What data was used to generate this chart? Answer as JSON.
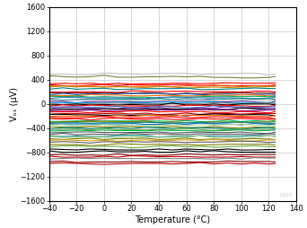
{
  "xlabel": "Temperature (°C)",
  "ylabel": "Vₒₛ (μV)",
  "xlim": [
    -40,
    140
  ],
  "ylim": [
    -1600,
    1600
  ],
  "xticks": [
    -40,
    -20,
    0,
    20,
    40,
    60,
    80,
    100,
    120,
    140
  ],
  "yticks": [
    -1600,
    -1200,
    -800,
    -400,
    0,
    400,
    800,
    1200,
    1600
  ],
  "x_start": -40,
  "x_end": 125,
  "seed": 12345,
  "watermark": "C035",
  "background_color": "#FFFFFF",
  "grid_color": "#C8C8C8",
  "line_specs": [
    {
      "color": "#C0C0C0",
      "v0": 490,
      "slope": 0.5
    },
    {
      "color": "#808040",
      "v0": 450,
      "slope": -0.3
    },
    {
      "color": "#FF0000",
      "v0": 340,
      "slope": 0.1
    },
    {
      "color": "#FF0000",
      "v0": 310,
      "slope": -0.05
    },
    {
      "color": "#FF6600",
      "v0": 290,
      "slope": 0.2
    },
    {
      "color": "#C08000",
      "v0": 280,
      "slope": -0.1
    },
    {
      "color": "#008080",
      "v0": 250,
      "slope": 0.3
    },
    {
      "color": "#FF0000",
      "v0": 200,
      "slope": 0.15
    },
    {
      "color": "#800000",
      "v0": 180,
      "slope": -0.2
    },
    {
      "color": "#0070C0",
      "v0": 160,
      "slope": 0.1
    },
    {
      "color": "#FF6600",
      "v0": 140,
      "slope": 0.05
    },
    {
      "color": "#00B050",
      "v0": 120,
      "slope": -0.1
    },
    {
      "color": "#4472C4",
      "v0": 100,
      "slope": 0.2
    },
    {
      "color": "#008080",
      "v0": 80,
      "slope": 0.1
    },
    {
      "color": "#C0C0C0",
      "v0": 60,
      "slope": -0.15
    },
    {
      "color": "#7030A0",
      "v0": 40,
      "slope": 0.05
    },
    {
      "color": "#00B0F0",
      "v0": 20,
      "slope": 0.1
    },
    {
      "color": "#808080",
      "v0": 5,
      "slope": -0.05
    },
    {
      "color": "#000000",
      "v0": -10,
      "slope": 0.1
    },
    {
      "color": "#FF0000",
      "v0": -30,
      "slope": -0.1
    },
    {
      "color": "#4472C4",
      "v0": -50,
      "slope": 0.15
    },
    {
      "color": "#7030A0",
      "v0": -70,
      "slope": -0.2
    },
    {
      "color": "#000000",
      "v0": -90,
      "slope": 0.05
    },
    {
      "color": "#800080",
      "v0": -100,
      "slope": 0.1
    },
    {
      "color": "#FF0000",
      "v0": -130,
      "slope": -0.15
    },
    {
      "color": "#C00000",
      "v0": -160,
      "slope": 0.1
    },
    {
      "color": "#000000",
      "v0": -180,
      "slope": -0.05
    },
    {
      "color": "#FF6600",
      "v0": -200,
      "slope": 0.2
    },
    {
      "color": "#FF0000",
      "v0": -220,
      "slope": -0.1
    },
    {
      "color": "#FF0000",
      "v0": -250,
      "slope": 0.15
    },
    {
      "color": "#00B050",
      "v0": -280,
      "slope": -0.2
    },
    {
      "color": "#808000",
      "v0": -300,
      "slope": 0.1
    },
    {
      "color": "#008080",
      "v0": -310,
      "slope": -0.05
    },
    {
      "color": "#0070C0",
      "v0": -330,
      "slope": 0.1
    },
    {
      "color": "#A9D18E",
      "v0": -350,
      "slope": 0.05
    },
    {
      "color": "#808000",
      "v0": -380,
      "slope": -0.1
    },
    {
      "color": "#008080",
      "v0": -400,
      "slope": 0.15
    },
    {
      "color": "#70AD47",
      "v0": -420,
      "slope": -0.1
    },
    {
      "color": "#00B050",
      "v0": -440,
      "slope": 0.2
    },
    {
      "color": "#595959",
      "v0": -470,
      "slope": -0.15
    },
    {
      "color": "#595959",
      "v0": -500,
      "slope": 0.1
    },
    {
      "color": "#008080",
      "v0": -530,
      "slope": -0.05
    },
    {
      "color": "#A9D18E",
      "v0": -550,
      "slope": 0.1
    },
    {
      "color": "#808000",
      "v0": -580,
      "slope": 0.05
    },
    {
      "color": "#D4A017",
      "v0": -600,
      "slope": -0.1
    },
    {
      "color": "#595959",
      "v0": -630,
      "slope": 0.15
    },
    {
      "color": "#808000",
      "v0": -670,
      "slope": -0.2
    },
    {
      "color": "#70AD47",
      "v0": -700,
      "slope": 0.1
    },
    {
      "color": "#000000",
      "v0": -750,
      "slope": -0.1
    },
    {
      "color": "#000000",
      "v0": -790,
      "slope": 0.2
    },
    {
      "color": "#800000",
      "v0": -840,
      "slope": -0.15
    },
    {
      "color": "#C00000",
      "v0": -870,
      "slope": 0.1
    },
    {
      "color": "#808080",
      "v0": -900,
      "slope": -0.1
    },
    {
      "color": "#800000",
      "v0": -950,
      "slope": 0.05
    },
    {
      "color": "#C00000",
      "v0": -980,
      "slope": -0.2
    }
  ]
}
